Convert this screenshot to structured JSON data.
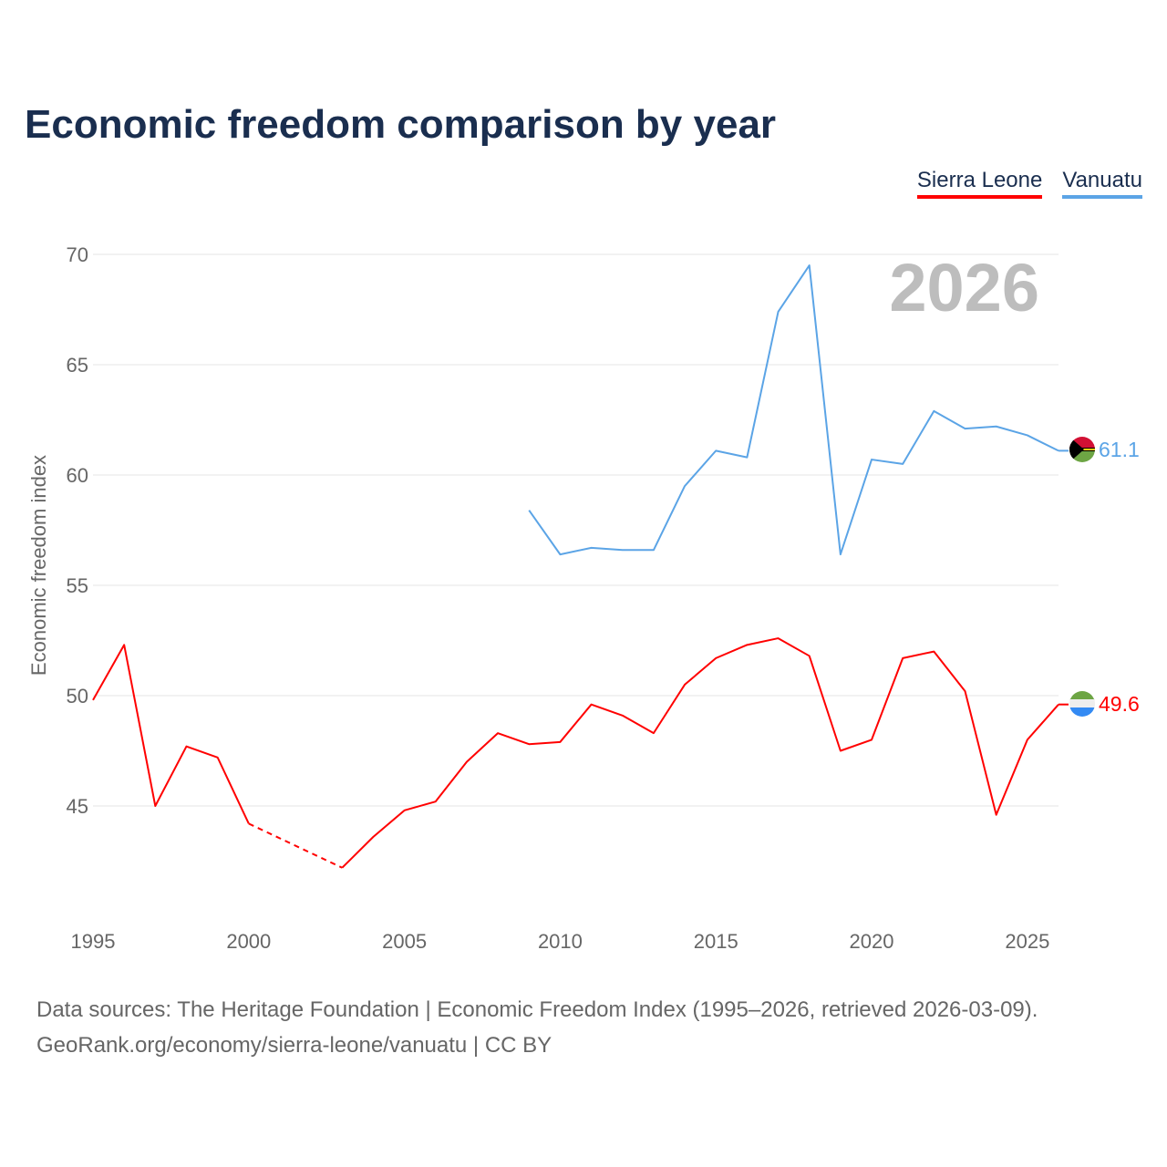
{
  "title": "Economic freedom comparison by year",
  "footer": {
    "line1": "Data sources: The Heritage Foundation | Economic Freedom Index (1995–2026, retrieved 2026-03-09).",
    "line2": "GeoRank.org/economy/sierra-leone/vanuatu | CC BY"
  },
  "chart_data": {
    "type": "line",
    "title": "Economic freedom comparison by year",
    "ylabel": "Economic freedom index",
    "xlabel": "",
    "watermark_year": "2026",
    "xlim": [
      1995,
      2026
    ],
    "ylim": [
      40,
      70
    ],
    "xticks": [
      "1995",
      "2000",
      "2005",
      "2010",
      "2015",
      "2020",
      "2025"
    ],
    "yticks": [
      "45",
      "50",
      "55",
      "60",
      "65",
      "70"
    ],
    "grid": true,
    "legend_position": "top-right",
    "x": [
      1995,
      1996,
      1997,
      1998,
      1999,
      2000,
      2001,
      2002,
      2003,
      2004,
      2005,
      2006,
      2007,
      2008,
      2009,
      2010,
      2011,
      2012,
      2013,
      2014,
      2015,
      2016,
      2017,
      2018,
      2019,
      2020,
      2021,
      2022,
      2023,
      2024,
      2025,
      2026
    ],
    "series": [
      {
        "name": "Sierra Leone",
        "color": "#ff0000",
        "end_label": "49.6",
        "values": [
          49.8,
          52.3,
          45.0,
          47.7,
          47.2,
          44.2,
          null,
          null,
          42.2,
          43.6,
          44.8,
          45.2,
          47.0,
          48.3,
          47.8,
          47.9,
          49.6,
          49.1,
          48.3,
          50.5,
          51.7,
          52.3,
          52.6,
          51.8,
          47.5,
          48.0,
          51.7,
          52.0,
          50.2,
          44.6,
          48.0,
          49.6
        ]
      },
      {
        "name": "Vanuatu",
        "color": "#5ba4e6",
        "end_label": "61.1",
        "values": [
          null,
          null,
          null,
          null,
          null,
          null,
          null,
          null,
          null,
          null,
          null,
          null,
          null,
          null,
          58.4,
          56.4,
          56.7,
          56.6,
          56.6,
          59.5,
          61.1,
          60.8,
          67.4,
          69.5,
          56.4,
          60.7,
          60.5,
          62.9,
          62.1,
          62.2,
          61.8,
          61.1
        ]
      }
    ]
  }
}
